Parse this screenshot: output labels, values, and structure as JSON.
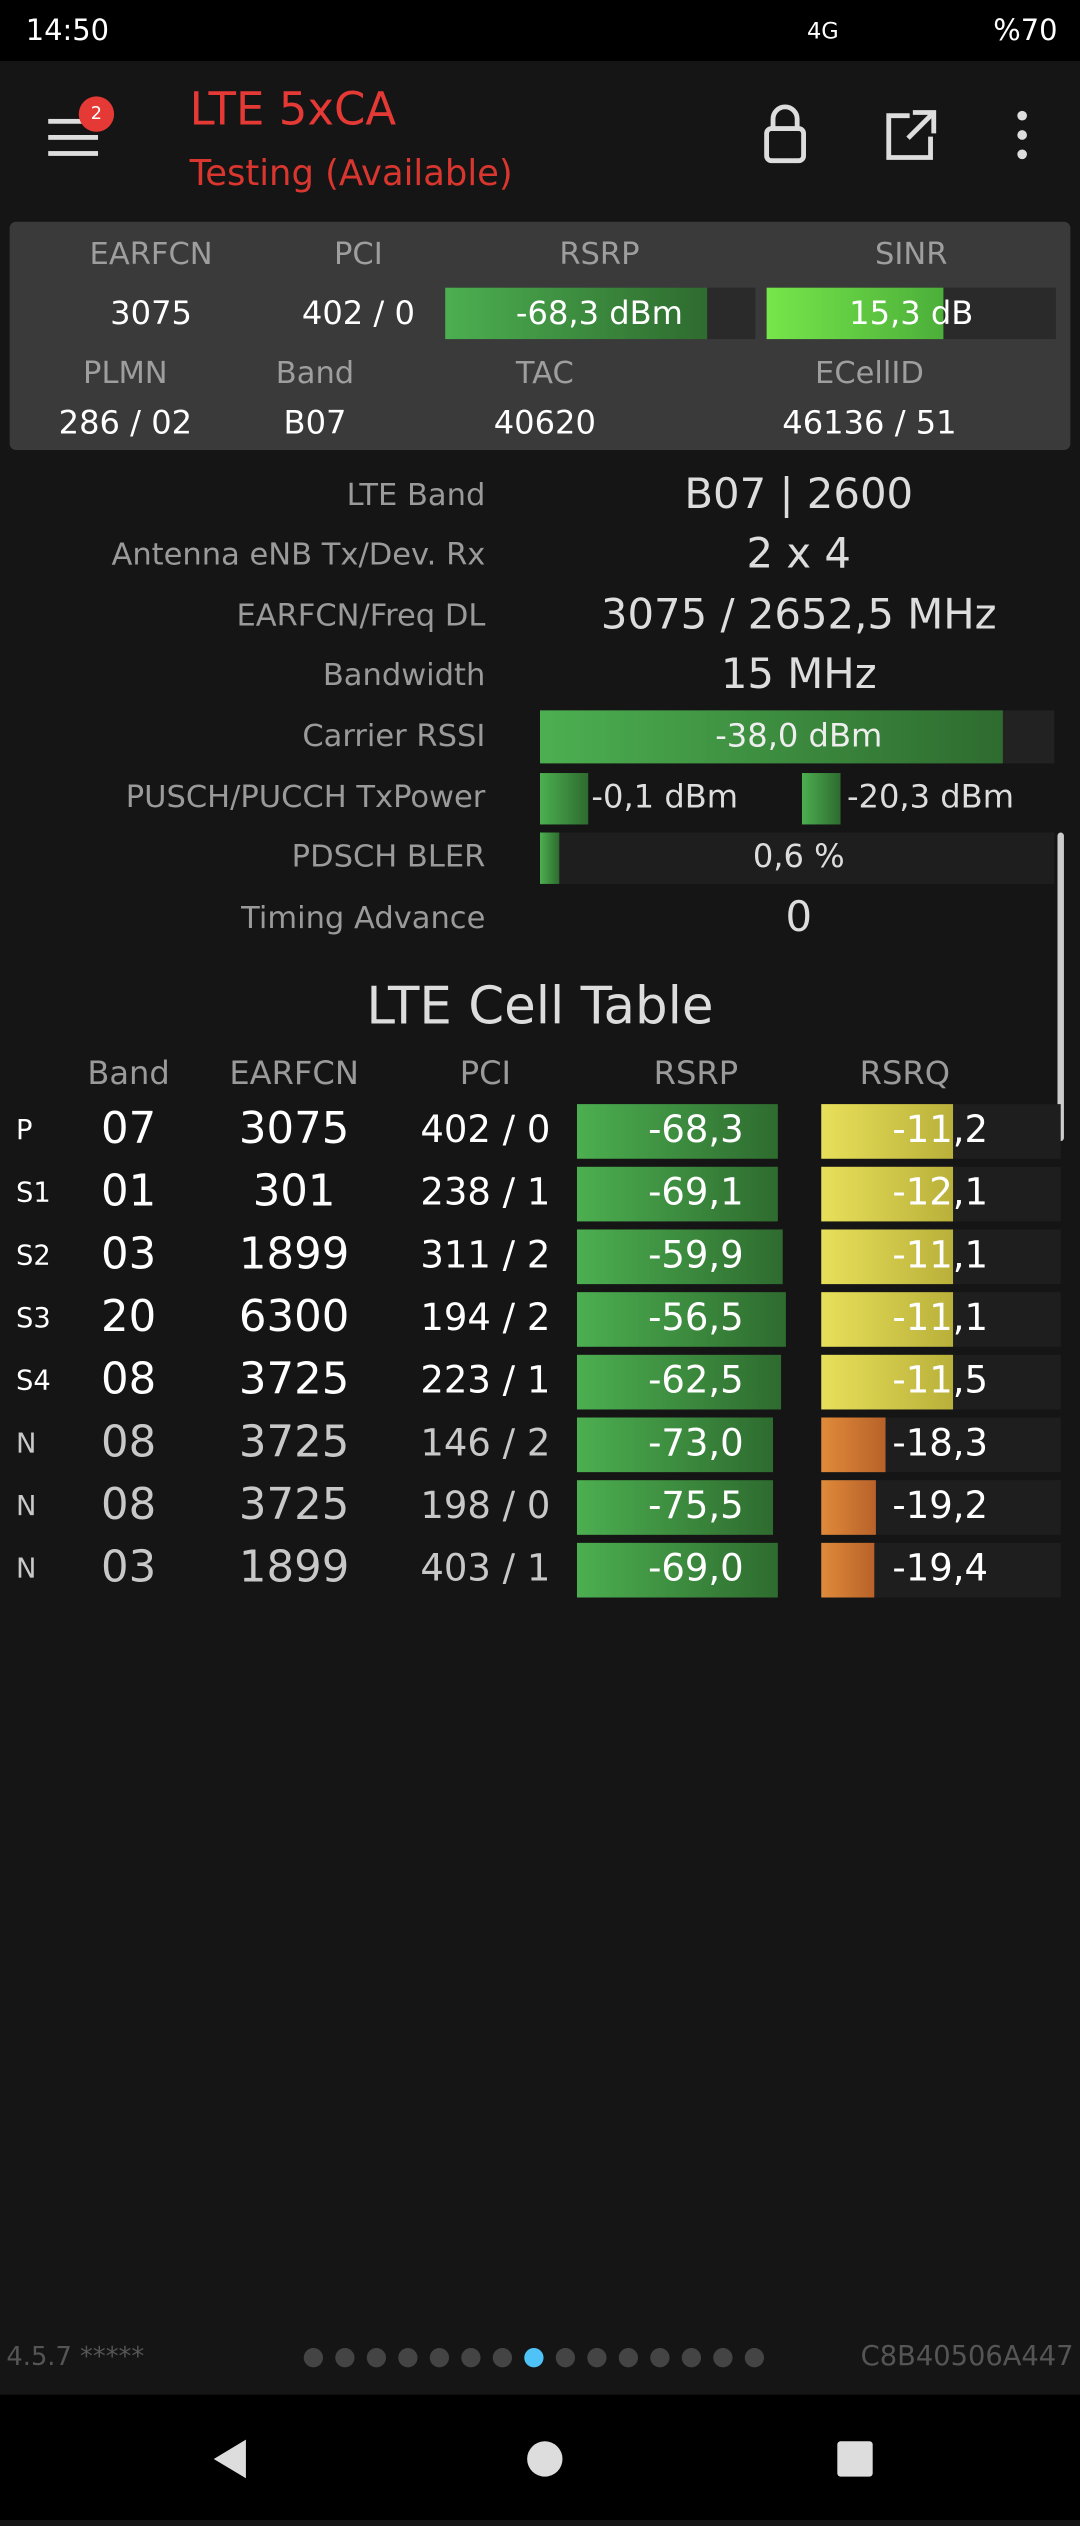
{
  "status_bar": {
    "time": "14:50",
    "network": "4G",
    "battery": "%70"
  },
  "header": {
    "badge": "2",
    "title": "LTE 5xCA",
    "subtitle": "Testing (Available)"
  },
  "summary": {
    "labels_1": [
      "EARFCN",
      "PCI",
      "RSRP",
      "SINR"
    ],
    "values_1": [
      "3075",
      "402 / 0",
      "-68,3 dBm",
      "15,3 dB"
    ],
    "labels_2": [
      "PLMN",
      "Band",
      "TAC",
      "ECellID"
    ],
    "values_2": [
      "286 / 02",
      "B07",
      "40620",
      "46136 / 51"
    ]
  },
  "details": [
    {
      "label": "LTE Band",
      "value": "B07 | 2600"
    },
    {
      "label": "Antenna eNB Tx/Dev. Rx",
      "value": "2 x 4"
    },
    {
      "label": "EARFCN/Freq DL",
      "value": "3075 / 2652,5 MHz"
    },
    {
      "label": "Bandwidth",
      "value": "15 MHz"
    },
    {
      "label": "Carrier RSSI",
      "value": "-38,0 dBm"
    },
    {
      "label": "PUSCH/PUCCH TxPower",
      "values": [
        "-0,1 dBm",
        "-20,3 dBm"
      ]
    },
    {
      "label": "PDSCH BLER",
      "value": "0,6 %"
    },
    {
      "label": "Timing Advance",
      "value": "0"
    }
  ],
  "cell_table": {
    "title": "LTE Cell Table",
    "columns": [
      "Band",
      "EARFCN",
      "PCI",
      "RSRP",
      "RSRQ"
    ],
    "rows": [
      [
        "P",
        "07",
        "3075",
        "402 / 0",
        "-68,3",
        "-11,2"
      ],
      [
        "S1",
        "01",
        "301",
        "238 / 1",
        "-69,1",
        "-12,1"
      ],
      [
        "S2",
        "03",
        "1899",
        "311 / 2",
        "-59,9",
        "-11,1"
      ],
      [
        "S3",
        "20",
        "6300",
        "194 / 2",
        "-56,5",
        "-11,1"
      ],
      [
        "S4",
        "08",
        "3725",
        "223 / 1",
        "-62,5",
        "-11,5"
      ],
      [
        "N",
        "08",
        "3725",
        "146 / 2",
        "-73,0",
        "-18,3"
      ],
      [
        "N",
        "08",
        "3725",
        "198 / 0",
        "-75,5",
        "-19,2"
      ],
      [
        "N",
        "03",
        "1899",
        "403 / 1",
        "-69,0",
        "-19,4"
      ]
    ]
  },
  "footer": {
    "version": "4.5.7 *****",
    "device_id": "C8B40506A447"
  }
}
